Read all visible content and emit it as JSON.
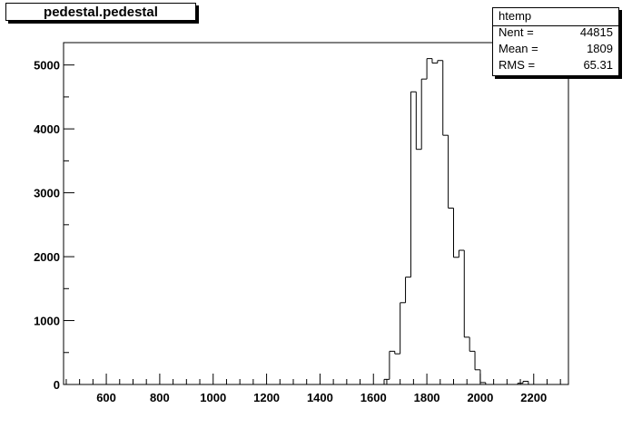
{
  "chart_data": {
    "type": "bar",
    "title": "pedestal.pedestal",
    "xlabel": "",
    "ylabel": "",
    "xlim": [
      440,
      2330
    ],
    "ylim": [
      0,
      5350
    ],
    "x_ticks": [
      600,
      800,
      1000,
      1200,
      1400,
      1600,
      1800,
      2000,
      2200
    ],
    "y_ticks": [
      0,
      1000,
      2000,
      3000,
      4000,
      5000
    ],
    "bin_width": 20,
    "bins": [
      {
        "x": 1640,
        "value": 80
      },
      {
        "x": 1660,
        "value": 520
      },
      {
        "x": 1680,
        "value": 480
      },
      {
        "x": 1700,
        "value": 1280
      },
      {
        "x": 1720,
        "value": 1680
      },
      {
        "x": 1740,
        "value": 4580
      },
      {
        "x": 1760,
        "value": 3680
      },
      {
        "x": 1780,
        "value": 4780
      },
      {
        "x": 1800,
        "value": 5100
      },
      {
        "x": 1820,
        "value": 5030
      },
      {
        "x": 1840,
        "value": 5070
      },
      {
        "x": 1860,
        "value": 3900
      },
      {
        "x": 1880,
        "value": 2760
      },
      {
        "x": 1900,
        "value": 1990
      },
      {
        "x": 1920,
        "value": 2100
      },
      {
        "x": 1940,
        "value": 740
      },
      {
        "x": 1960,
        "value": 520
      },
      {
        "x": 1980,
        "value": 230
      },
      {
        "x": 2000,
        "value": 30
      },
      {
        "x": 2140,
        "value": 20
      },
      {
        "x": 2160,
        "value": 50
      }
    ],
    "stats": {
      "name": "htemp",
      "entries": [
        {
          "label": "Nent =",
          "value": "44815"
        },
        {
          "label": "Mean  =",
          "value": "1809"
        },
        {
          "label": "RMS   =",
          "value": "65.31"
        }
      ]
    },
    "legend": "top-right",
    "grid": false
  },
  "colors": {
    "line": "#000000",
    "background": "#ffffff"
  }
}
